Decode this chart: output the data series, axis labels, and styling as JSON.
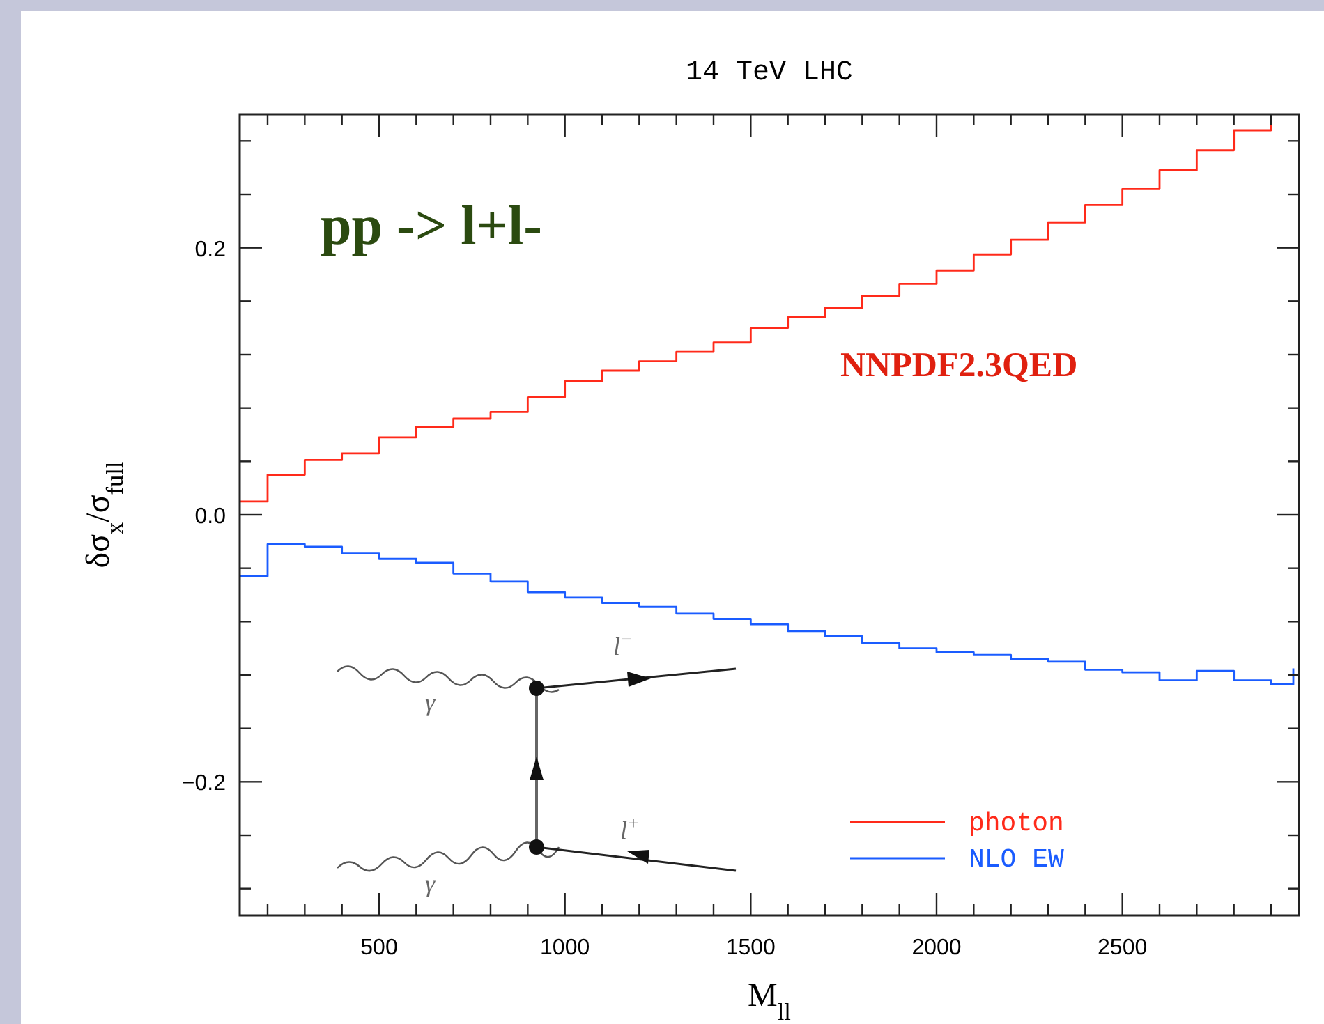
{
  "chart_data": {
    "type": "step",
    "title": "14 TeV LHC",
    "xlabel": "M$_{ll}$",
    "ylabel": "δσ$_{x}$/σ$_{full}$",
    "x": [
      125,
      200,
      300,
      400,
      500,
      600,
      700,
      800,
      900,
      1000,
      1100,
      1200,
      1300,
      1400,
      1500,
      1600,
      1700,
      1800,
      1900,
      2000,
      2100,
      2200,
      2300,
      2400,
      2500,
      2600,
      2700,
      2800,
      2900
    ],
    "series": [
      {
        "name": "photon",
        "color": "#ff2a1a",
        "values": [
          0.01,
          0.03,
          0.041,
          0.046,
          0.058,
          0.066,
          0.072,
          0.077,
          0.088,
          0.1,
          0.108,
          0.115,
          0.122,
          0.129,
          0.14,
          0.148,
          0.155,
          0.164,
          0.173,
          0.183,
          0.195,
          0.206,
          0.219,
          0.232,
          0.244,
          0.258,
          0.273,
          0.288,
          0.298
        ]
      },
      {
        "name": "NLO EW",
        "color": "#1a5cff",
        "x": [
          125,
          200,
          300,
          400,
          500,
          600,
          700,
          800,
          900,
          1000,
          1100,
          1200,
          1300,
          1400,
          1500,
          1600,
          1700,
          1800,
          1900,
          2000,
          2100,
          2200,
          2300,
          2400,
          2500,
          2600,
          2700,
          2800,
          2900,
          2960
        ],
        "values": [
          -0.046,
          -0.022,
          -0.024,
          -0.029,
          -0.033,
          -0.036,
          -0.044,
          -0.05,
          -0.058,
          -0.062,
          -0.066,
          -0.069,
          -0.074,
          -0.078,
          -0.082,
          -0.087,
          -0.091,
          -0.096,
          -0.1,
          -0.103,
          -0.105,
          -0.108,
          -0.11,
          -0.116,
          -0.118,
          -0.124,
          -0.117,
          -0.124,
          -0.127,
          -0.115
        ]
      }
    ],
    "xlim": [
      125,
      2975
    ],
    "xticks": [
      {
        "value": 200,
        "label": null
      },
      {
        "value": 300,
        "label": null
      },
      {
        "value": 400,
        "label": null
      },
      500,
      {
        "value": 600,
        "label": null
      },
      {
        "value": 700,
        "label": null
      },
      {
        "value": 800,
        "label": null
      },
      {
        "value": 900,
        "label": null
      },
      1000,
      {
        "value": 1100,
        "label": null
      },
      {
        "value": 1200,
        "label": null
      },
      {
        "value": 1300,
        "label": null
      },
      {
        "value": 1400,
        "label": null
      },
      1500,
      {
        "value": 1600,
        "label": null
      },
      {
        "value": 1700,
        "label": null
      },
      {
        "value": 1800,
        "label": null
      },
      {
        "value": 1900,
        "label": null
      },
      2000,
      {
        "value": 2100,
        "label": null
      },
      {
        "value": 2200,
        "label": null
      },
      {
        "value": 2300,
        "label": null
      },
      {
        "value": 2400,
        "label": null
      },
      2500,
      {
        "value": 2600,
        "label": null
      },
      {
        "value": 2700,
        "label": null
      },
      {
        "value": 2800,
        "label": null
      },
      {
        "value": 2900,
        "label": null
      }
    ],
    "ylim": [
      -0.3,
      0.3
    ],
    "yticks": [
      {
        "value": -0.28,
        "label": null
      },
      {
        "value": -0.24,
        "label": null
      },
      {
        "value": -0.2,
        "label": "−0.2"
      },
      {
        "value": -0.16,
        "label": null
      },
      {
        "value": -0.12,
        "label": null
      },
      {
        "value": -0.08,
        "label": null
      },
      {
        "value": -0.04,
        "label": null
      },
      {
        "value": 0,
        "label": "0.0"
      },
      {
        "value": 0.04,
        "label": null
      },
      {
        "value": 0.08,
        "label": null
      },
      {
        "value": 0.12,
        "label": null
      },
      {
        "value": 0.16,
        "label": null
      },
      {
        "value": 0.2,
        "label": "0.2"
      },
      {
        "value": 0.24,
        "label": null
      },
      {
        "value": 0.28,
        "label": null
      }
    ],
    "grid": false,
    "legend": "bottom right",
    "line_style": "solid",
    "marker": "none",
    "annotations": [
      "pp -> l+l-",
      "NNPDF2.3QED",
      "γ",
      "γ",
      "l$^{−}$",
      "l$^{+}$"
    ]
  }
}
